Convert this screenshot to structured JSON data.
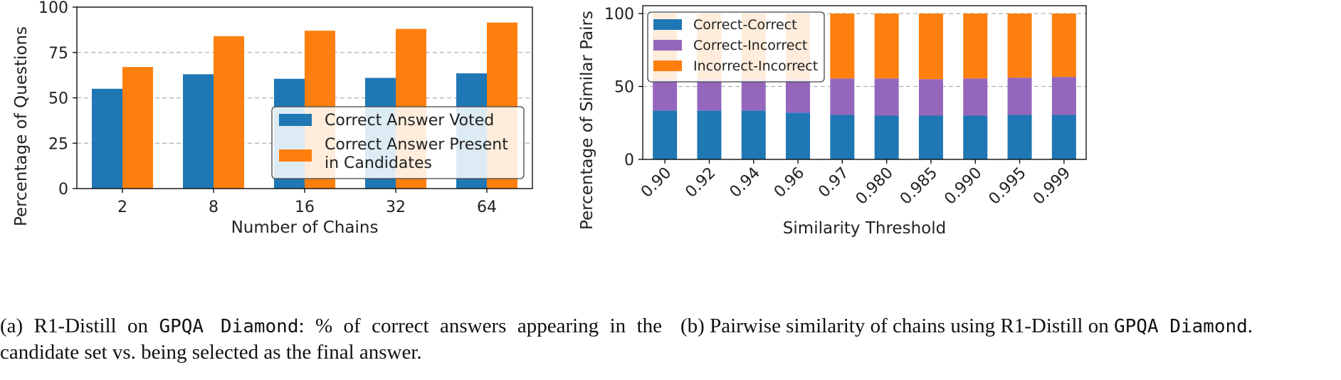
{
  "chart_data": [
    {
      "type": "bar",
      "categories": [
        "2",
        "8",
        "16",
        "32",
        "64"
      ],
      "series": [
        {
          "name": "Correct Answer Voted",
          "values": [
            55,
            63,
            60.5,
            61,
            63.5
          ],
          "color": "#1f77b4"
        },
        {
          "name": "Correct Answer Present in Candidates",
          "name_lines": [
            "Correct Answer Present",
            "in Candidates"
          ],
          "values": [
            67,
            84,
            87,
            88,
            91.5
          ],
          "color": "#ff7f0e"
        }
      ],
      "xlabel": "Number of Chains",
      "ylabel": "Percentage of Questions",
      "ylim": [
        0,
        100
      ],
      "yticks": [
        "0",
        "25",
        "50",
        "75",
        "100"
      ],
      "grid": "y-dashed",
      "legend": "lower-right"
    },
    {
      "type": "stacked-bar",
      "categories": [
        "0.90",
        "0.92",
        "0.94",
        "0.96",
        "0.97",
        "0.980",
        "0.985",
        "0.990",
        "0.995",
        "0.999"
      ],
      "series": [
        {
          "name": "Correct-Correct",
          "values": [
            33.5,
            33.5,
            33.5,
            32,
            30.5,
            30,
            30,
            30,
            30.5,
            30.5
          ],
          "color": "#1f77b4"
        },
        {
          "name": "Correct-Incorrect",
          "values": [
            21.5,
            21.5,
            21.5,
            23,
            25,
            25.5,
            25,
            25.5,
            25.5,
            26
          ],
          "color": "#9467bd"
        },
        {
          "name": "Incorrect-Incorrect",
          "values": [
            45,
            45,
            45,
            45,
            44.5,
            44.5,
            45,
            44.5,
            44,
            43.5
          ],
          "color": "#ff7f0e"
        }
      ],
      "xlabel": "Similarity Threshold",
      "ylabel": "Percentage of Similar Pairs",
      "ylim": [
        0,
        100
      ],
      "yticks": [
        "0",
        "50",
        "100"
      ],
      "grid": "y-dashed",
      "legend": "upper-left"
    }
  ],
  "captions": {
    "a_prefix": "(a) R1-Distill on ",
    "a_mono": "GPQA Diamond",
    "a_rest": ": % of correct answers appearing in the candidate set vs. being selected as the final answer.",
    "b_prefix": "(b) Pairwise similarity of chains using R1-Distill on ",
    "b_mono": "GPQA Diamond",
    "b_rest": "."
  }
}
